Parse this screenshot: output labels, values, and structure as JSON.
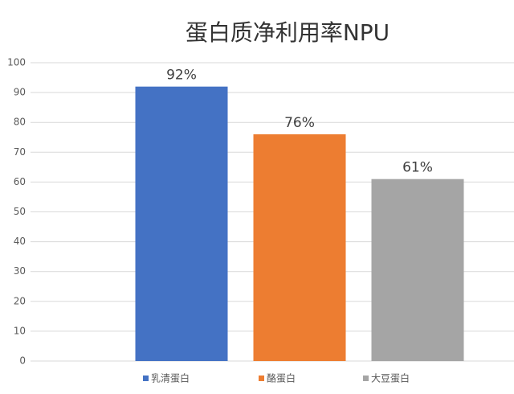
{
  "chart_data": {
    "type": "bar",
    "title": "蛋白质净利用率NPU",
    "categories": [
      null
    ],
    "series": [
      {
        "name": "乳清蛋白",
        "color": "#4472c4",
        "values": [
          92
        ],
        "value_labels": [
          "92%"
        ]
      },
      {
        "name": "酪蛋白",
        "color": "#ed7d31",
        "values": [
          76
        ],
        "value_labels": [
          "76%"
        ]
      },
      {
        "name": "大豆蛋白",
        "color": "#a5a5a5",
        "values": [
          61
        ],
        "value_labels": [
          "61%"
        ]
      }
    ],
    "ylim": [
      0,
      100
    ],
    "yticks": [
      0,
      10,
      20,
      30,
      40,
      50,
      60,
      70,
      80,
      90,
      100
    ],
    "grid": true,
    "legend": "bottom"
  }
}
